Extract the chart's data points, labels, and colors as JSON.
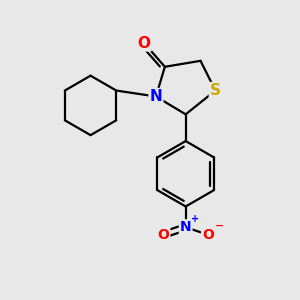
{
  "background_color": "#e8e8e8",
  "bond_color": "#000000",
  "atom_colors": {
    "O": "#ff0000",
    "N": "#0000ff",
    "S": "#ccaa00",
    "C": "#000000"
  },
  "figsize": [
    3.0,
    3.0
  ],
  "dpi": 100
}
